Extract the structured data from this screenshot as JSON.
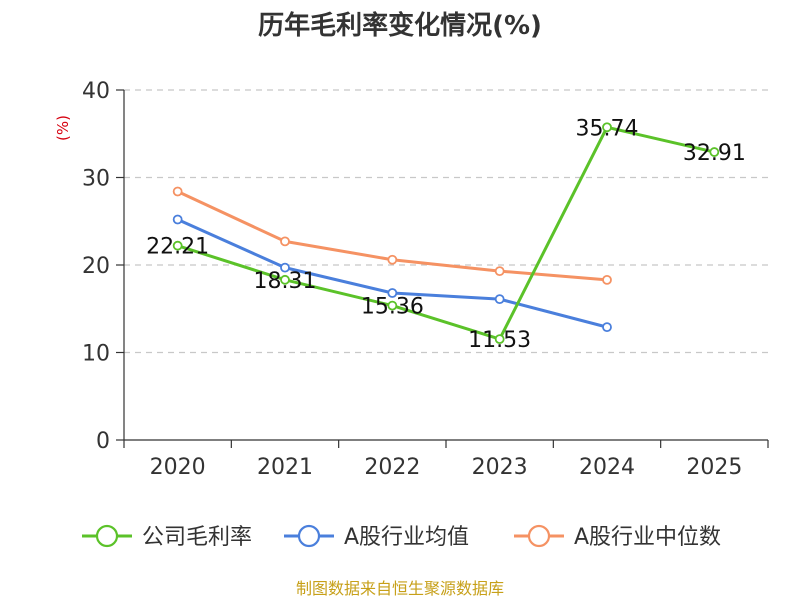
{
  "chart_data": {
    "type": "line",
    "title": "历年毛利率变化情况(%)",
    "ylabel": "(%)",
    "xlabel": "",
    "categories": [
      "2020",
      "2021",
      "2022",
      "2023",
      "2024",
      "2025"
    ],
    "ylim": [
      0,
      40
    ],
    "yticks": [
      0,
      10,
      20,
      30,
      40
    ],
    "grid": true,
    "legend_position": "bottom",
    "series": [
      {
        "name": "公司毛利率",
        "color": "#5bc229",
        "values": [
          22.21,
          18.31,
          15.36,
          11.53,
          35.74,
          32.91
        ],
        "labels": [
          "22.21",
          "18.31",
          "15.36",
          "11.53",
          "35.74",
          "32.91"
        ]
      },
      {
        "name": "A股行业均值",
        "color": "#4a7fdc",
        "values": [
          25.2,
          19.7,
          16.8,
          16.1,
          12.9,
          null
        ]
      },
      {
        "name": "A股行业中位数",
        "color": "#f59263",
        "values": [
          28.4,
          22.7,
          20.6,
          19.3,
          18.3,
          null
        ]
      }
    ]
  },
  "source": "制图数据来自恒生聚源数据库"
}
